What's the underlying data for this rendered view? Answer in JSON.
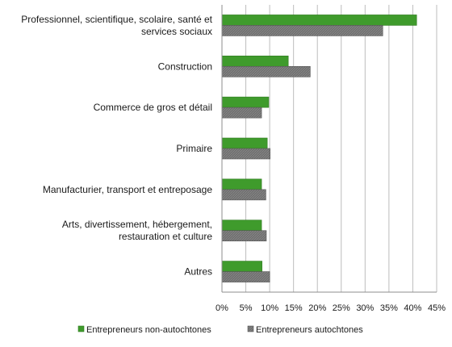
{
  "chart_data": {
    "type": "bar",
    "orientation": "horizontal",
    "categories": [
      [
        "Professionnel, scientifique, scolaire, santé et",
        "services sociaux"
      ],
      [
        "Construction"
      ],
      [
        "Commerce de gros et détail"
      ],
      [
        "Primaire"
      ],
      [
        "Manufacturier, transport et entreposage"
      ],
      [
        "Arts, divertissement, hébergement,",
        "restauration et culture"
      ],
      [
        "Autres"
      ]
    ],
    "series": [
      {
        "name": "Entrepreneurs non-autochtones",
        "color": "#3f9b2c",
        "values": [
          40.8,
          13.9,
          9.8,
          9.5,
          8.3,
          8.3,
          8.4
        ]
      },
      {
        "name": "Entrepreneurs autochtones",
        "color": "#6f6f6f",
        "values": [
          33.7,
          18.5,
          8.3,
          10.1,
          9.2,
          9.3,
          10.0
        ]
      }
    ],
    "xlim": [
      0,
      45
    ],
    "xticks": [
      0,
      5,
      10,
      15,
      20,
      25,
      30,
      35,
      40,
      45
    ],
    "tick_suffix": "%",
    "grid": true,
    "legend_position": "bottom"
  }
}
